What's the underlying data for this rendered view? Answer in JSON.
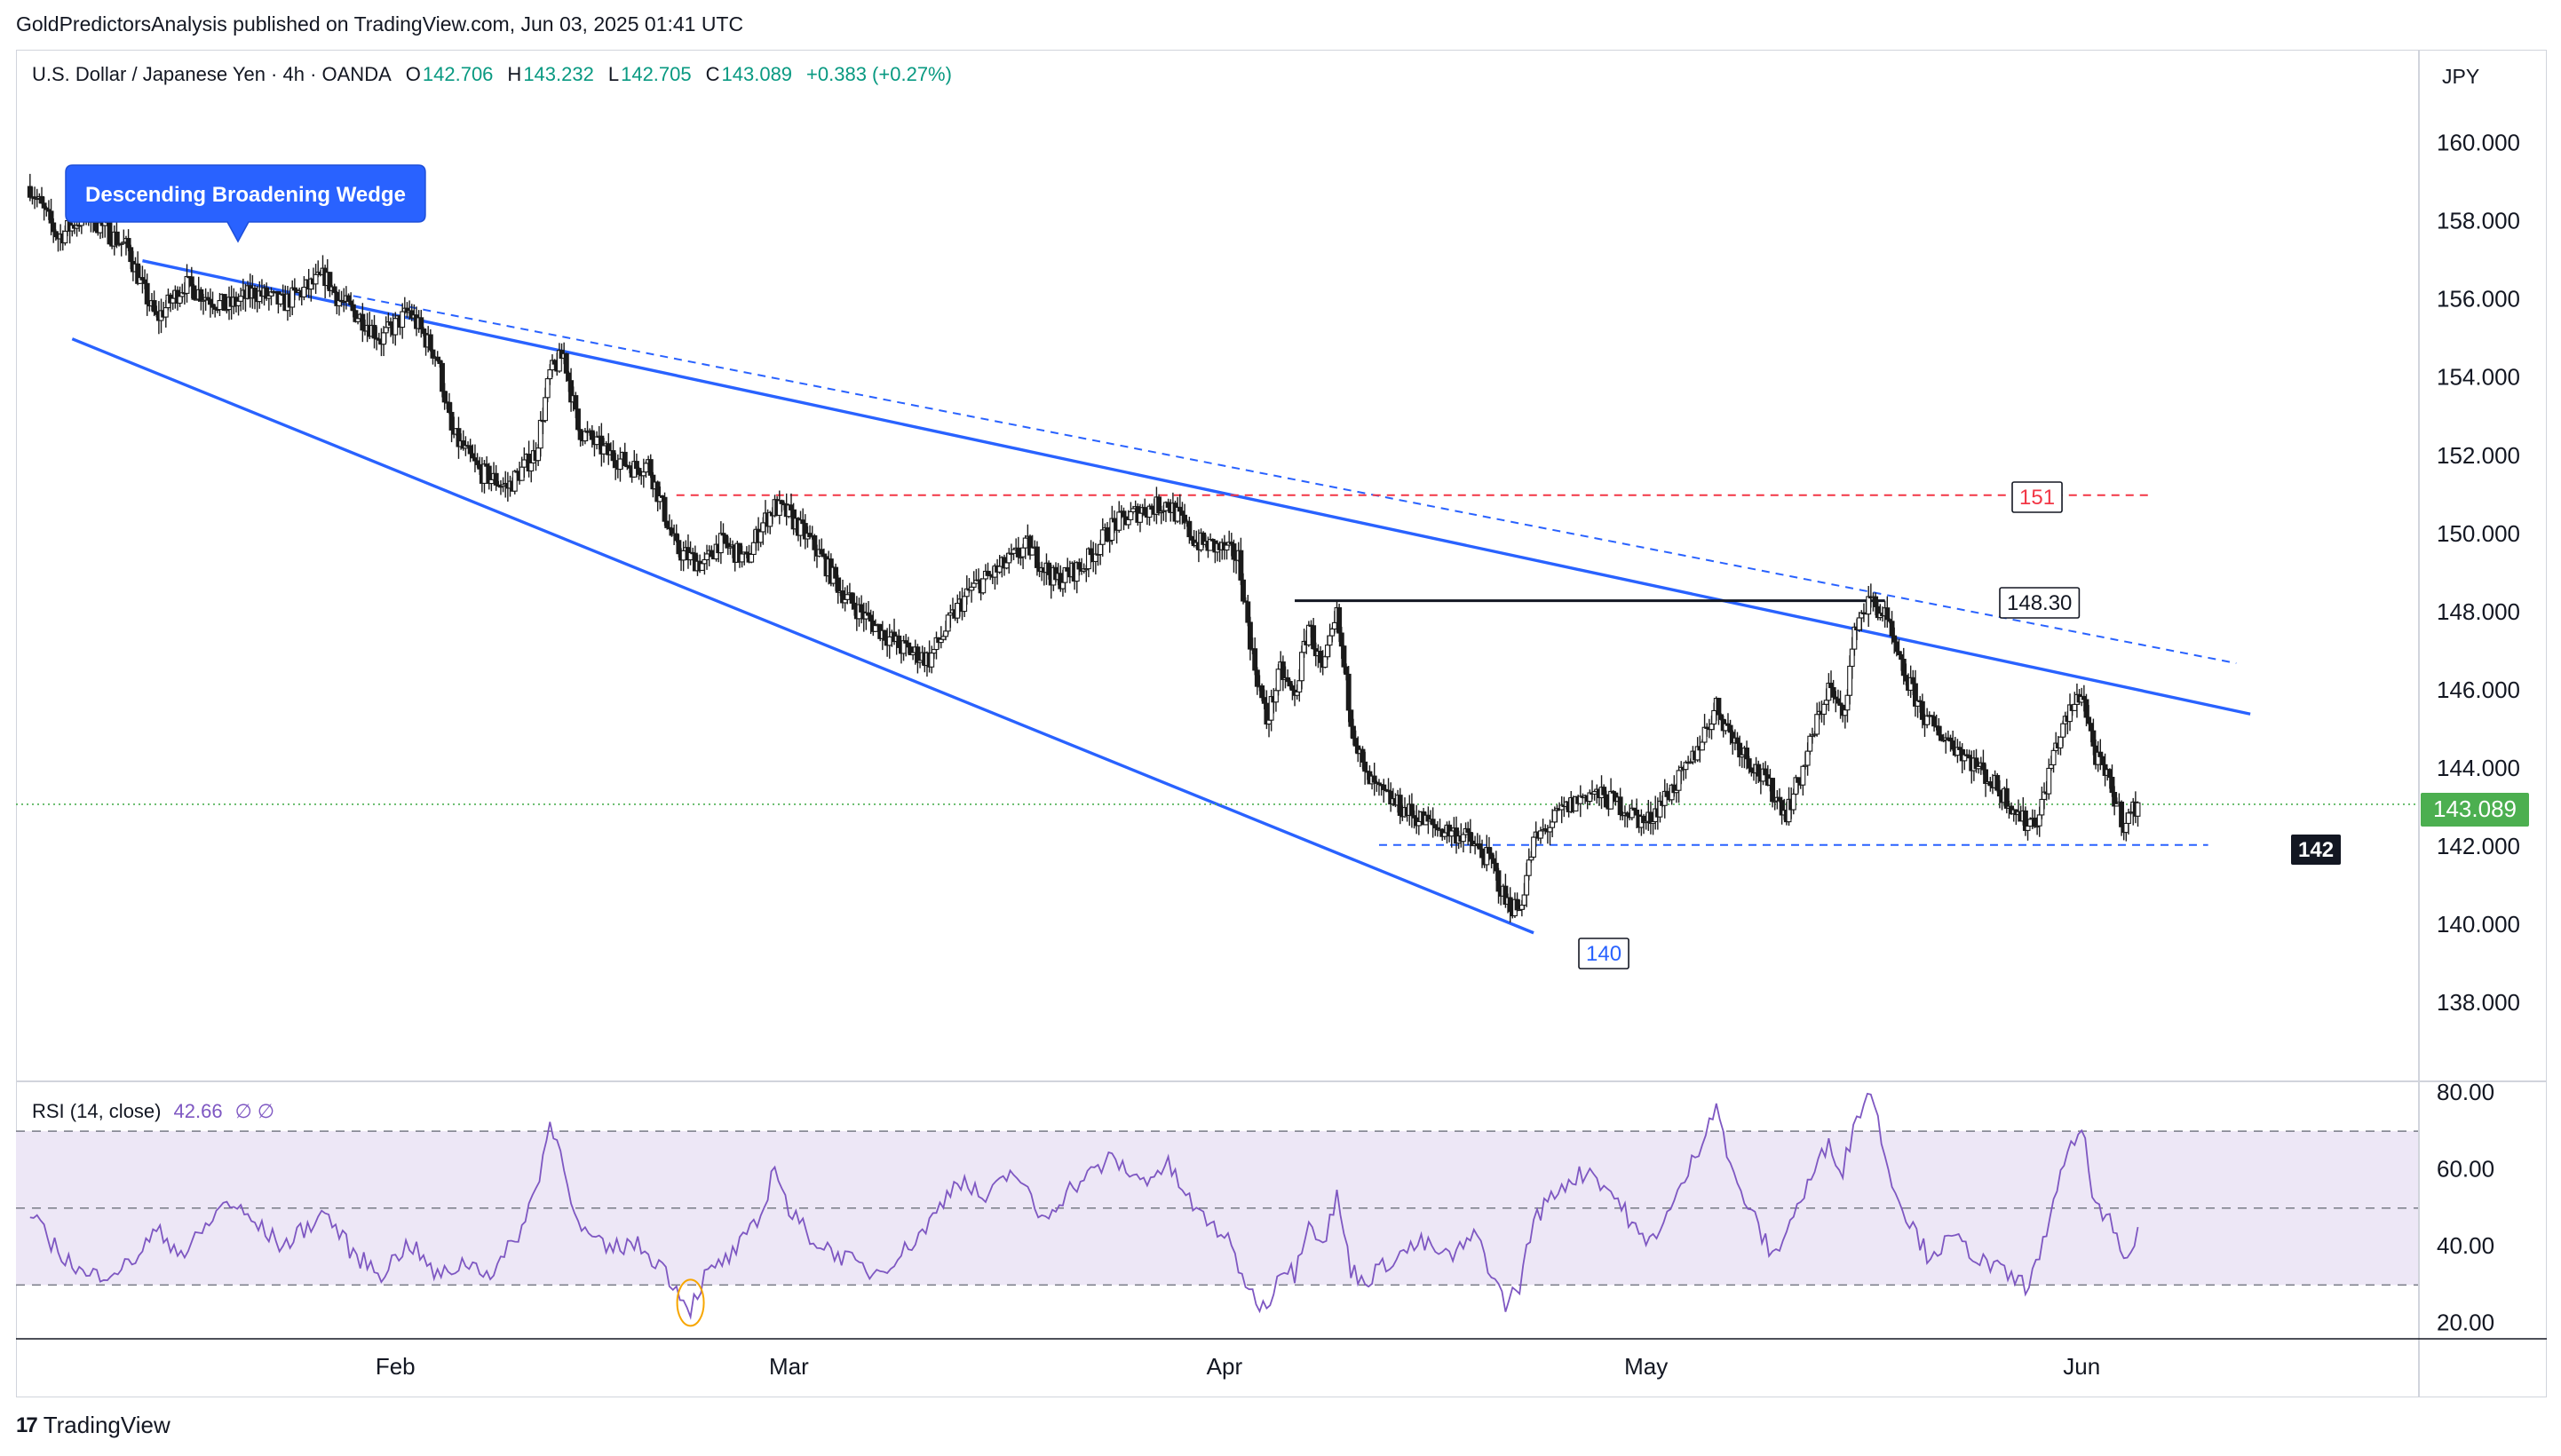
{
  "publish_line": "GoldPredictorsAnalysis published on TradingView.com, Jun 03, 2025 01:41 UTC",
  "footer": {
    "brand": "TradingView"
  },
  "colors": {
    "up": "#1a1a1a",
    "down": "#1a1a1a",
    "wedge": "#2962ff",
    "resistance_red": "#f23645",
    "last_price": "#4caf50",
    "rsi_line": "#7e57c2",
    "rsi_band": "#ede7f6"
  },
  "chart_data": [
    {
      "type": "candlestick",
      "symbol_header": {
        "name": "U.S. Dollar / Japanese Yen · 4h · OANDA",
        "open_label": "O",
        "open": "142.706",
        "high_label": "H",
        "high": "143.232",
        "low_label": "L",
        "low": "142.705",
        "close_label": "C",
        "close": "143.089",
        "change": "+0.383 (+0.27%)"
      },
      "currency": "JPY",
      "ylim": [
        136.0,
        162.4
      ],
      "y_ticks": [
        "160.000",
        "158.000",
        "156.000",
        "154.000",
        "152.000",
        "150.000",
        "148.000",
        "146.000",
        "144.000",
        "142.000",
        "140.000",
        "138.000"
      ],
      "x_ticks": [
        "Feb",
        "Mar",
        "Apr",
        "May",
        "Jun"
      ],
      "last_price_label": "143.089",
      "last_price": 143.089,
      "path_points": [
        [
          "2025-01-06",
          158.9
        ],
        [
          "2025-01-08",
          157.6
        ],
        [
          "2025-01-10",
          158.2
        ],
        [
          "2025-01-13",
          157.3
        ],
        [
          "2025-01-14",
          156.3
        ],
        [
          "2025-01-15",
          155.5
        ],
        [
          "2025-01-17",
          156.4
        ],
        [
          "2025-01-20",
          155.8
        ],
        [
          "2025-01-22",
          156.2
        ],
        [
          "2025-01-24",
          155.9
        ],
        [
          "2025-01-27",
          156.6
        ],
        [
          "2025-01-28",
          156.0
        ],
        [
          "2025-01-30",
          155.4
        ],
        [
          "2025-01-31",
          155.0
        ],
        [
          "2025-02-02",
          155.7
        ],
        [
          "2025-02-04",
          154.5
        ],
        [
          "2025-02-05",
          152.6
        ],
        [
          "2025-02-07",
          151.6
        ],
        [
          "2025-02-09",
          151.2
        ],
        [
          "2025-02-11",
          152.1
        ],
        [
          "2025-02-12",
          154.1
        ],
        [
          "2025-02-13",
          154.6
        ],
        [
          "2025-02-14",
          152.7
        ],
        [
          "2025-02-16",
          152.1
        ],
        [
          "2025-02-18",
          151.7
        ],
        [
          "2025-02-19",
          151.8
        ],
        [
          "2025-02-21",
          149.6
        ],
        [
          "2025-02-23",
          149.2
        ],
        [
          "2025-02-24",
          149.8
        ],
        [
          "2025-02-25",
          149.6
        ],
        [
          "2025-02-26",
          149.3
        ],
        [
          "2025-02-27",
          150.2
        ],
        [
          "2025-02-28",
          150.7
        ],
        [
          "2025-03-01",
          150.5
        ],
        [
          "2025-03-03",
          149.6
        ],
        [
          "2025-03-05",
          148.4
        ],
        [
          "2025-03-07",
          147.7
        ],
        [
          "2025-03-09",
          147.1
        ],
        [
          "2025-03-11",
          146.8
        ],
        [
          "2025-03-13",
          148.1
        ],
        [
          "2025-03-14",
          148.6
        ],
        [
          "2025-03-16",
          149.1
        ],
        [
          "2025-03-18",
          149.7
        ],
        [
          "2025-03-20",
          148.8
        ],
        [
          "2025-03-22",
          149.2
        ],
        [
          "2025-03-24",
          150.2
        ],
        [
          "2025-03-26",
          150.6
        ],
        [
          "2025-03-28",
          150.8
        ],
        [
          "2025-03-30",
          149.8
        ],
        [
          "2025-04-01",
          149.6
        ],
        [
          "2025-04-02",
          149.4
        ],
        [
          "2025-04-03",
          146.9
        ],
        [
          "2025-04-04",
          145.2
        ],
        [
          "2025-04-05",
          146.5
        ],
        [
          "2025-04-06",
          145.8
        ],
        [
          "2025-04-07",
          147.7
        ],
        [
          "2025-04-08",
          146.4
        ],
        [
          "2025-04-09",
          147.9
        ],
        [
          "2025-04-10",
          145.3
        ],
        [
          "2025-04-11",
          143.8
        ],
        [
          "2025-04-12",
          143.4
        ],
        [
          "2025-04-14",
          142.9
        ],
        [
          "2025-04-16",
          142.5
        ],
        [
          "2025-04-18",
          142.3
        ],
        [
          "2025-04-20",
          141.6
        ],
        [
          "2025-04-21",
          140.6
        ],
        [
          "2025-04-22",
          140.4
        ],
        [
          "2025-04-23",
          142.1
        ],
        [
          "2025-04-25",
          142.9
        ],
        [
          "2025-04-27",
          143.4
        ],
        [
          "2025-04-29",
          143.1
        ],
        [
          "2025-05-01",
          142.6
        ],
        [
          "2025-05-02",
          143.1
        ],
        [
          "2025-05-04",
          144.0
        ],
        [
          "2025-05-06",
          145.6
        ],
        [
          "2025-05-07",
          144.9
        ],
        [
          "2025-05-09",
          143.9
        ],
        [
          "2025-05-11",
          142.9
        ],
        [
          "2025-05-12",
          143.8
        ],
        [
          "2025-05-13",
          145.0
        ],
        [
          "2025-05-14",
          146.1
        ],
        [
          "2025-05-15",
          145.3
        ],
        [
          "2025-05-16",
          147.8
        ],
        [
          "2025-05-17",
          148.3
        ],
        [
          "2025-05-18",
          147.9
        ],
        [
          "2025-05-19",
          146.7
        ],
        [
          "2025-05-21",
          145.2
        ],
        [
          "2025-05-23",
          144.6
        ],
        [
          "2025-05-25",
          143.9
        ],
        [
          "2025-05-27",
          143.1
        ],
        [
          "2025-05-28",
          142.6
        ],
        [
          "2025-05-29",
          142.8
        ],
        [
          "2025-05-30",
          144.4
        ],
        [
          "2025-05-31",
          145.3
        ],
        [
          "2025-06-01",
          146.0
        ],
        [
          "2025-06-02",
          144.3
        ],
        [
          "2025-06-03",
          143.6
        ],
        [
          "2025-06-04",
          142.6
        ],
        [
          "2025-06-05",
          143.1
        ]
      ],
      "annotations": {
        "callout": "Descending Broadening Wedge",
        "resistance_151": {
          "label": "151",
          "value": 151
        },
        "resistance_148": {
          "label": "148.30",
          "value": 148.3
        },
        "support_140": {
          "label": "140",
          "value": 140
        },
        "support_142": {
          "label": "142",
          "value": 142.05
        },
        "wedge_upper": [
          [
            "2025-01-14",
            157.0
          ],
          [
            "2025-06-13",
            145.4
          ]
        ],
        "wedge_upper_dashed": [
          [
            "2025-01-29",
            156.1
          ],
          [
            "2025-06-12",
            146.7
          ]
        ],
        "wedge_lower": [
          [
            "2025-01-09",
            155.0
          ],
          [
            "2025-04-23",
            139.8
          ]
        ]
      }
    },
    {
      "type": "line",
      "name": "RSI (14, close)",
      "header": {
        "label": "RSI (14, close)",
        "value": "42.66",
        "extra": "∅ ∅"
      },
      "ylim": [
        16.0,
        82.5
      ],
      "y_ticks": [
        "80.00",
        "60.00",
        "40.00",
        "20.00"
      ],
      "band": [
        30,
        70
      ],
      "midline": 50,
      "path_points": [
        [
          "2025-01-06",
          48
        ],
        [
          "2025-01-08",
          39
        ],
        [
          "2025-01-10",
          32
        ],
        [
          "2025-01-13",
          35
        ],
        [
          "2025-01-15",
          44
        ],
        [
          "2025-01-17",
          38
        ],
        [
          "2025-01-20",
          52
        ],
        [
          "2025-01-22",
          46
        ],
        [
          "2025-01-24",
          40
        ],
        [
          "2025-01-27",
          49
        ],
        [
          "2025-01-29",
          38
        ],
        [
          "2025-01-31",
          33
        ],
        [
          "2025-02-02",
          41
        ],
        [
          "2025-02-04",
          32
        ],
        [
          "2025-02-06",
          36
        ],
        [
          "2025-02-08",
          33
        ],
        [
          "2025-02-10",
          45
        ],
        [
          "2025-02-11",
          55
        ],
        [
          "2025-02-12",
          72
        ],
        [
          "2025-02-13",
          62
        ],
        [
          "2025-02-14",
          45
        ],
        [
          "2025-02-16",
          39
        ],
        [
          "2025-02-18",
          41
        ],
        [
          "2025-02-20",
          35
        ],
        [
          "2025-02-21",
          29
        ],
        [
          "2025-02-22",
          24
        ],
        [
          "2025-02-23",
          32
        ],
        [
          "2025-02-25",
          38
        ],
        [
          "2025-02-27",
          47
        ],
        [
          "2025-02-28",
          62
        ],
        [
          "2025-03-01",
          49
        ],
        [
          "2025-03-03",
          41
        ],
        [
          "2025-03-05",
          37
        ],
        [
          "2025-03-07",
          33
        ],
        [
          "2025-03-09",
          38
        ],
        [
          "2025-03-11",
          46
        ],
        [
          "2025-03-13",
          58
        ],
        [
          "2025-03-15",
          52
        ],
        [
          "2025-03-17",
          60
        ],
        [
          "2025-03-19",
          47
        ],
        [
          "2025-03-21",
          55
        ],
        [
          "2025-03-24",
          63
        ],
        [
          "2025-03-26",
          57
        ],
        [
          "2025-03-28",
          61
        ],
        [
          "2025-03-30",
          49
        ],
        [
          "2025-04-01",
          43
        ],
        [
          "2025-04-03",
          27
        ],
        [
          "2025-04-04",
          24
        ],
        [
          "2025-04-05",
          35
        ],
        [
          "2025-04-06",
          33
        ],
        [
          "2025-04-07",
          48
        ],
        [
          "2025-04-08",
          40
        ],
        [
          "2025-04-09",
          53
        ],
        [
          "2025-04-10",
          34
        ],
        [
          "2025-04-11",
          31
        ],
        [
          "2025-04-13",
          37
        ],
        [
          "2025-04-15",
          41
        ],
        [
          "2025-04-17",
          37
        ],
        [
          "2025-04-19",
          43
        ],
        [
          "2025-04-20",
          33
        ],
        [
          "2025-04-21",
          25
        ],
        [
          "2025-04-22",
          30
        ],
        [
          "2025-04-23",
          47
        ],
        [
          "2025-04-25",
          56
        ],
        [
          "2025-04-27",
          60
        ],
        [
          "2025-04-29",
          52
        ],
        [
          "2025-05-01",
          40
        ],
        [
          "2025-05-03",
          51
        ],
        [
          "2025-05-05",
          68
        ],
        [
          "2025-05-06",
          78
        ],
        [
          "2025-05-07",
          60
        ],
        [
          "2025-05-09",
          45
        ],
        [
          "2025-05-10",
          37
        ],
        [
          "2025-05-12",
          52
        ],
        [
          "2025-05-14",
          67
        ],
        [
          "2025-05-15",
          60
        ],
        [
          "2025-05-16",
          74
        ],
        [
          "2025-05-17",
          81
        ],
        [
          "2025-05-18",
          64
        ],
        [
          "2025-05-19",
          52
        ],
        [
          "2025-05-21",
          38
        ],
        [
          "2025-05-23",
          42
        ],
        [
          "2025-05-25",
          36
        ],
        [
          "2025-05-27",
          32
        ],
        [
          "2025-05-28",
          30
        ],
        [
          "2025-05-29",
          36
        ],
        [
          "2025-05-30",
          53
        ],
        [
          "2025-05-31",
          63
        ],
        [
          "2025-06-01",
          71
        ],
        [
          "2025-06-02",
          50
        ],
        [
          "2025-06-03",
          46
        ],
        [
          "2025-06-04",
          36
        ],
        [
          "2025-06-05",
          42.66
        ]
      ],
      "marker_highlight": [
        "2025-02-22",
        24
      ]
    }
  ]
}
